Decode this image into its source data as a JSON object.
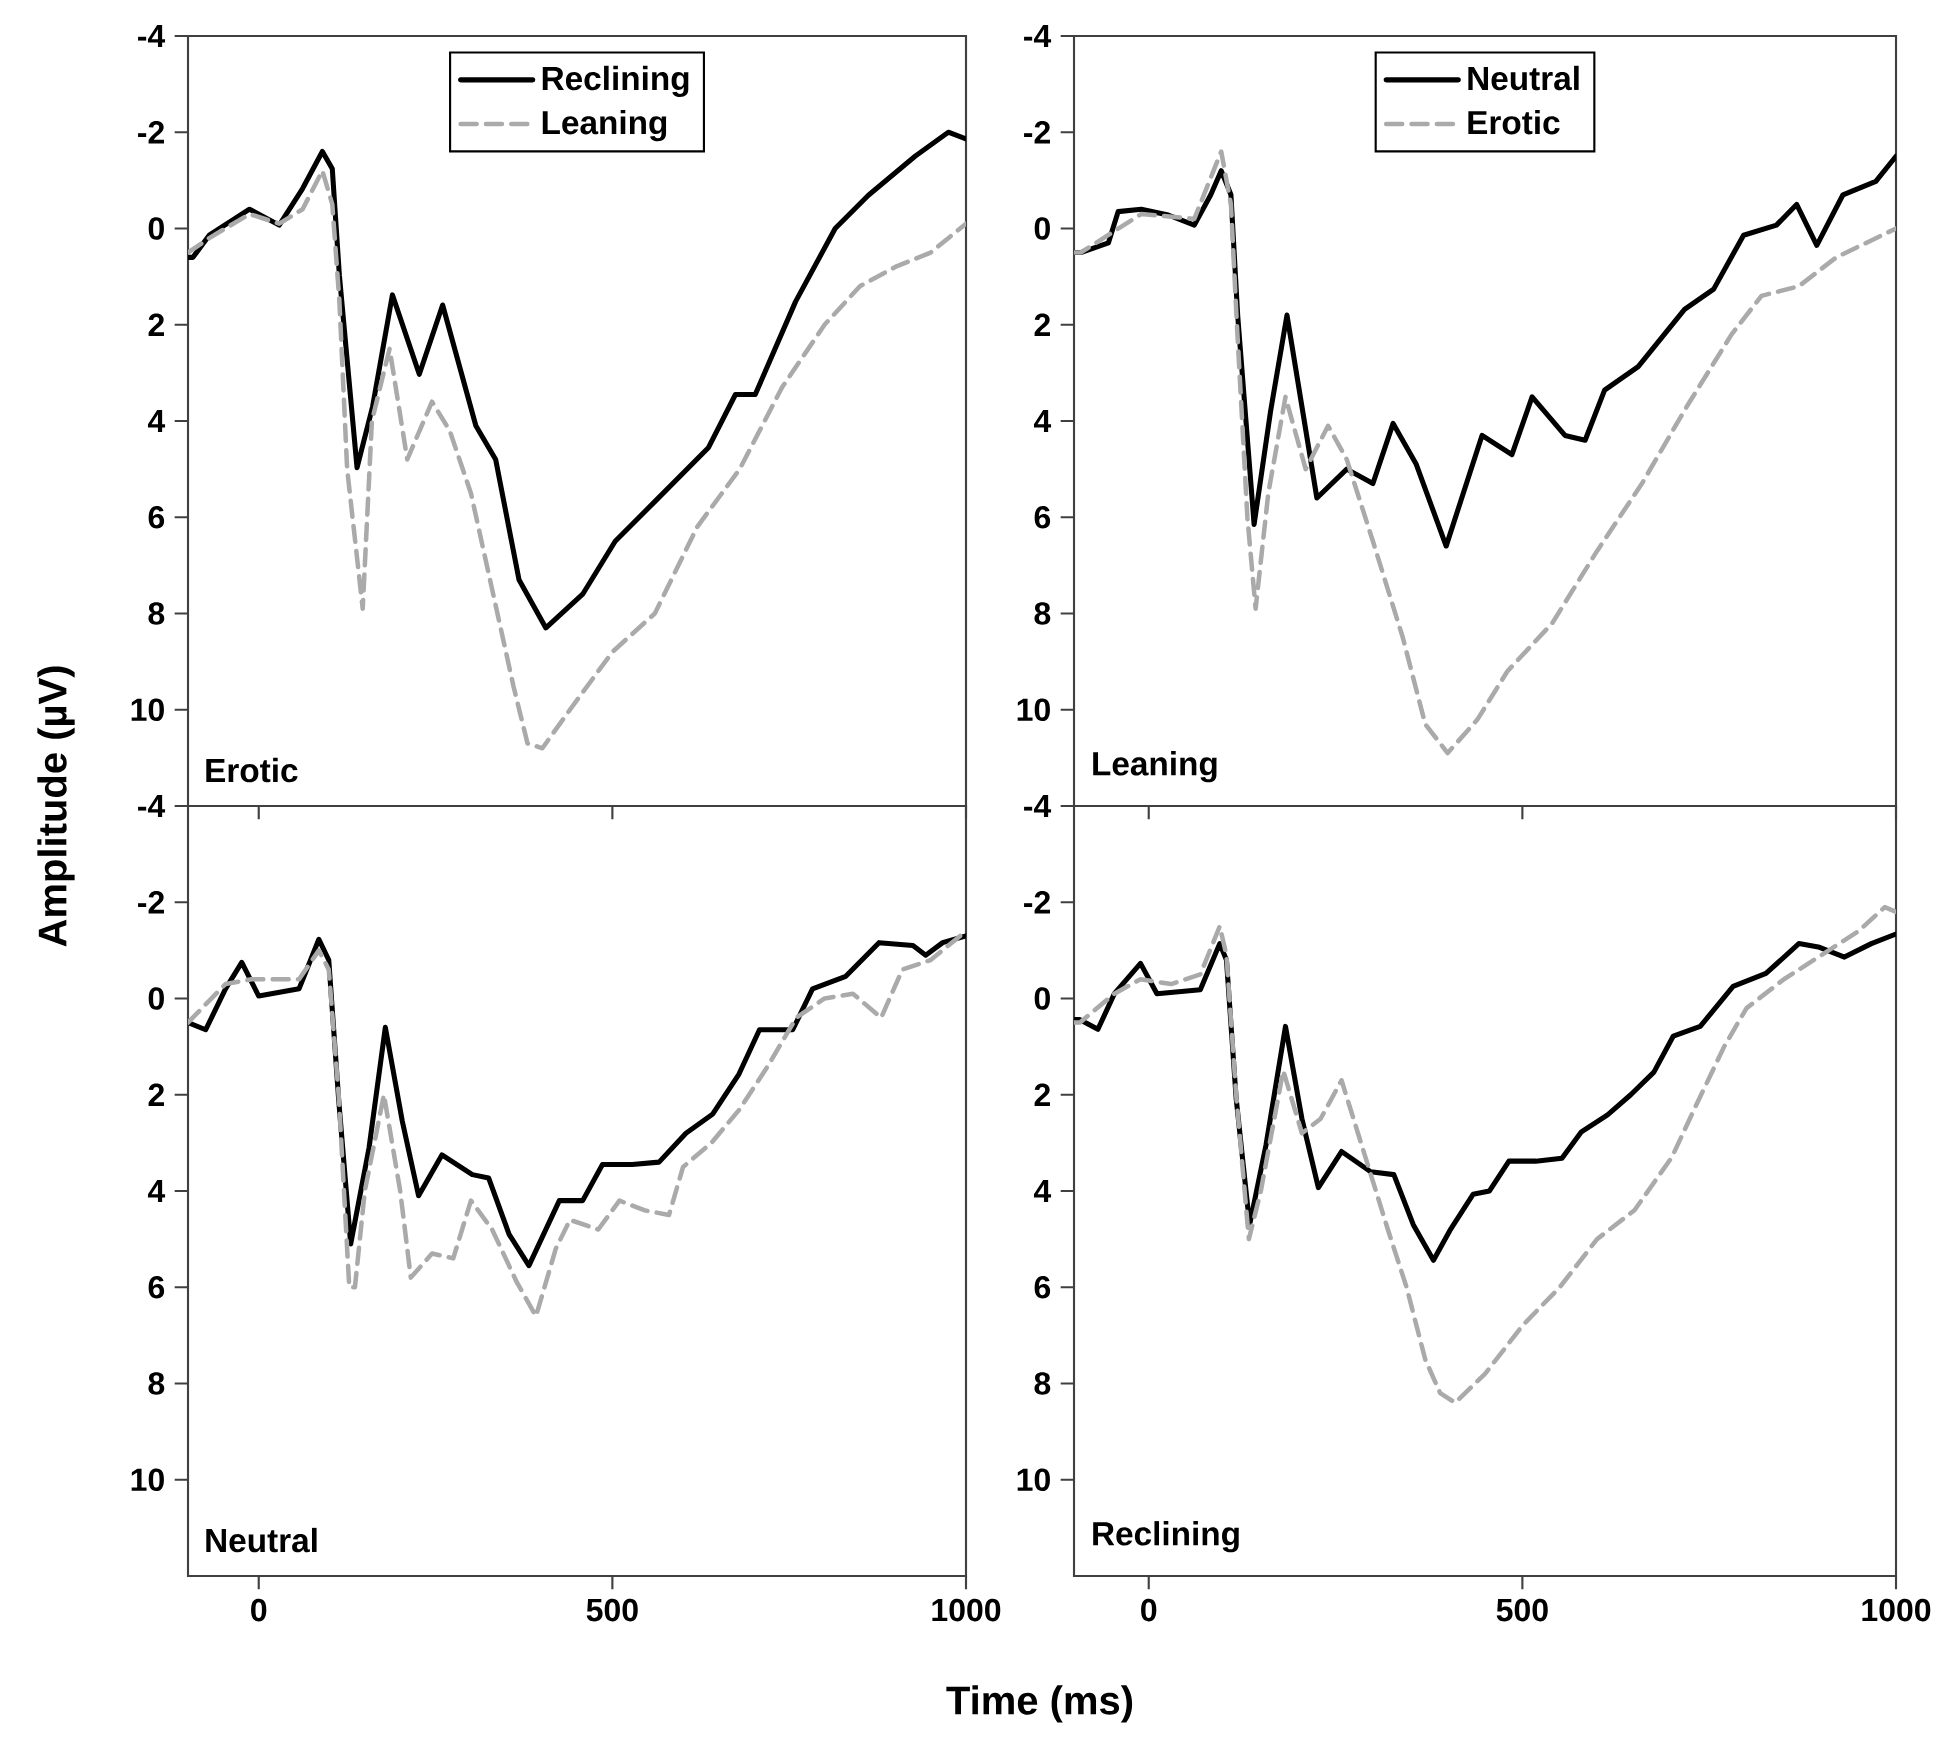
{
  "chart_data": [
    {
      "type": "line",
      "ylabel": "Amplitude (µV)",
      "xlim": [
        -100,
        1000
      ],
      "ylim": [
        12,
        -4
      ],
      "xticks": [
        0,
        500,
        1000
      ],
      "yticks": [
        -4,
        -2,
        0,
        2,
        4,
        6,
        8,
        10
      ],
      "tick_labels": "y",
      "legend": "top",
      "annotations": [
        "Erotic"
      ],
      "series": [
        {
          "name": "Reclining",
          "color": "#000000",
          "line_style": "solid",
          "x": [
            -100,
            -93,
            -70,
            -13,
            29,
            62,
            90,
            104,
            114,
            139,
            161,
            189,
            227,
            260,
            307,
            335,
            368,
            406,
            458,
            504,
            561,
            636,
            674,
            702,
            759,
            815,
            862,
            928,
            975,
            1000
          ],
          "values": [
            0.6,
            0.6,
            0.14,
            -0.4,
            -0.07,
            -0.83,
            -1.6,
            -1.24,
            0.97,
            4.97,
            3.7,
            1.38,
            3.03,
            1.59,
            4.1,
            4.8,
            7.3,
            8.3,
            7.6,
            6.5,
            5.66,
            4.55,
            3.45,
            3.45,
            1.52,
            0,
            -0.69,
            -1.5,
            -2,
            -1.86
          ]
        },
        {
          "name": "Leaning",
          "color": "#aaaaaa",
          "line_style": "dashed",
          "x": [
            -100,
            -70,
            -13,
            29,
            62,
            90,
            104,
            114,
            125,
            147,
            160,
            185,
            210,
            245,
            270,
            300,
            330,
            360,
            380,
            401,
            440,
            500,
            560,
            620,
            680,
            740,
            800,
            850,
            900,
            950,
            1000
          ],
          "values": [
            0.5,
            0.2,
            -0.3,
            -0.1,
            -0.4,
            -1.2,
            -0.5,
            1.5,
            5,
            7.9,
            4,
            2.5,
            4.8,
            3.6,
            4.2,
            5.5,
            7.5,
            9.5,
            10.7,
            10.8,
            10,
            8.8,
            8,
            6.2,
            5,
            3.3,
            2,
            1.2,
            0.8,
            0.5,
            -0.1
          ]
        }
      ]
    },
    {
      "type": "line",
      "xlim": [
        -100,
        1000
      ],
      "ylim": [
        12,
        -4
      ],
      "xticks": [
        0,
        500,
        1000
      ],
      "yticks": [
        -4,
        -2,
        0,
        2,
        4,
        6,
        8,
        10
      ],
      "tick_labels": "y",
      "legend": "top",
      "annotations": [
        "Leaning"
      ],
      "series": [
        {
          "name": "Neutral",
          "color": "#000000",
          "line_style": "solid",
          "x": [
            -100,
            -91,
            -54,
            -41,
            -10,
            26,
            61,
            83,
            97,
            110,
            119,
            141,
            163,
            185,
            225,
            265,
            300,
            327,
            358,
            398,
            446,
            486,
            513,
            557,
            584,
            610,
            655,
            717,
            756,
            796,
            840,
            867,
            894,
            929,
            973,
            1000
          ],
          "values": [
            0.5,
            0.5,
            0.3,
            -0.35,
            -0.4,
            -0.28,
            -0.07,
            -0.7,
            -1.2,
            -0.7,
            1.8,
            6.15,
            3.8,
            1.8,
            5.6,
            5,
            5.3,
            4.05,
            4.9,
            6.6,
            4.3,
            4.7,
            3.5,
            4.3,
            4.4,
            3.36,
            2.87,
            1.68,
            1.26,
            0.14,
            -0.07,
            -0.5,
            0.35,
            -0.7,
            -0.98,
            -1.5
          ]
        },
        {
          "name": "Erotic",
          "color": "#aaaaaa",
          "line_style": "dashed",
          "x": [
            -100,
            -91,
            -10,
            61,
            97,
            110,
            118,
            132,
            143,
            160,
            183,
            210,
            240,
            265,
            300,
            340,
            370,
            400,
            440,
            480,
            540,
            600,
            660,
            720,
            780,
            820,
            870,
            920,
            1000
          ],
          "values": [
            0.5,
            0.5,
            -0.3,
            -0.2,
            -1.6,
            -0.5,
            2,
            6,
            7.9,
            5.5,
            3.5,
            5,
            4.1,
            4.8,
            6.5,
            8.5,
            10.3,
            10.9,
            10.2,
            9.2,
            8.2,
            6.7,
            5.3,
            3.7,
            2.2,
            1.4,
            1.2,
            0.6,
            0
          ]
        }
      ]
    },
    {
      "type": "line",
      "xlabel": "Time (ms)",
      "xlim": [
        -100,
        1000
      ],
      "ylim": [
        12,
        -4
      ],
      "xticks": [
        0,
        500,
        1000
      ],
      "yticks": [
        -4,
        -2,
        0,
        2,
        4,
        6,
        8,
        10
      ],
      "annotations": [
        "Neutral"
      ],
      "series": [
        {
          "color": "#000000",
          "line_style": "solid",
          "x": [
            -100,
            -75,
            -47,
            -24,
            0,
            57,
            85,
            99,
            113,
            130,
            156,
            179,
            203,
            226,
            259,
            302,
            325,
            354,
            382,
            425,
            458,
            486,
            528,
            566,
            604,
            642,
            679,
            708,
            755,
            783,
            830,
            877,
            925,
            943,
            967,
            1000
          ],
          "values": [
            0.5,
            0.65,
            -0.2,
            -0.75,
            -0.05,
            -0.2,
            -1.23,
            -0.8,
            2.1,
            5.1,
            3.1,
            0.6,
            2.55,
            4.1,
            3.25,
            3.66,
            3.73,
            4.9,
            5.55,
            4.2,
            4.2,
            3.45,
            3.45,
            3.4,
            2.8,
            2.4,
            1.57,
            0.65,
            0.65,
            -0.2,
            -0.46,
            -1.16,
            -1.1,
            -0.9,
            -1.16,
            -1.3
          ]
        },
        {
          "color": "#aaaaaa",
          "line_style": "dashed",
          "x": [
            -100,
            -47,
            -10,
            57,
            85,
            99,
            113,
            128,
            136,
            150,
            177,
            200,
            215,
            245,
            275,
            300,
            330,
            365,
            392,
            420,
            440,
            480,
            510,
            545,
            580,
            600,
            640,
            680,
            720,
            760,
            800,
            840,
            880,
            910,
            950,
            1000
          ],
          "values": [
            0.5,
            -0.3,
            -0.4,
            -0.4,
            -1,
            -0.6,
            2,
            6,
            6,
            4,
            2,
            4,
            5.8,
            5.3,
            5.4,
            4.2,
            4.8,
            5.9,
            6.6,
            5.2,
            4.6,
            4.8,
            4.2,
            4.4,
            4.5,
            3.5,
            3,
            2.3,
            1.4,
            0.4,
            0,
            -0.1,
            0.4,
            -0.6,
            -0.8,
            -1.4
          ]
        }
      ]
    },
    {
      "type": "line",
      "xlim": [
        -100,
        1000
      ],
      "ylim": [
        12,
        -4
      ],
      "xticks": [
        0,
        500,
        1000
      ],
      "yticks": [
        -4,
        -2,
        0,
        2,
        4,
        6,
        8,
        10
      ],
      "annotations": [
        "Reclining"
      ],
      "series": [
        {
          "color": "#000000",
          "line_style": "solid",
          "x": [
            -100,
            -92,
            -68,
            -46,
            -11,
            11,
            69,
            95,
            104,
            117,
            135,
            157,
            183,
            205,
            227,
            258,
            297,
            328,
            354,
            381,
            403,
            434,
            456,
            482,
            518,
            553,
            579,
            614,
            645,
            676,
            702,
            738,
            782,
            826,
            870,
            896,
            931,
            967,
            1000
          ],
          "values": [
            0.44,
            0.44,
            0.64,
            -0.1,
            -0.73,
            -0.1,
            -0.18,
            -1.14,
            -0.8,
            2.08,
            4.7,
            3.04,
            0.58,
            2.5,
            3.93,
            3.18,
            3.6,
            3.66,
            4.7,
            5.44,
            4.82,
            4.07,
            4,
            3.38,
            3.38,
            3.32,
            2.77,
            2.42,
            2,
            1.53,
            0.78,
            0.58,
            -0.25,
            -0.52,
            -1.14,
            -1.07,
            -0.86,
            -1.14,
            -1.34
          ]
        },
        {
          "color": "#aaaaaa",
          "line_style": "dashed",
          "x": [
            -100,
            -92,
            -46,
            -11,
            30,
            69,
            95,
            104,
            117,
            134,
            150,
            180,
            205,
            230,
            258,
            280,
            300,
            320,
            345,
            370,
            390,
            410,
            450,
            500,
            550,
            600,
            650,
            700,
            730,
            770,
            800,
            850,
            900,
            950,
            985,
            1000
          ],
          "values": [
            0.5,
            0.5,
            -0.1,
            -0.4,
            -0.3,
            -0.5,
            -1.5,
            -0.9,
            2,
            5,
            4,
            1.5,
            2.8,
            2.5,
            1.7,
            2.8,
            3.8,
            4.8,
            6,
            7.5,
            8.2,
            8.4,
            7.8,
            6.8,
            6,
            5,
            4.4,
            3.3,
            2.3,
            1,
            0.2,
            -0.4,
            -0.9,
            -1.4,
            -1.9,
            -1.8
          ]
        }
      ]
    }
  ]
}
